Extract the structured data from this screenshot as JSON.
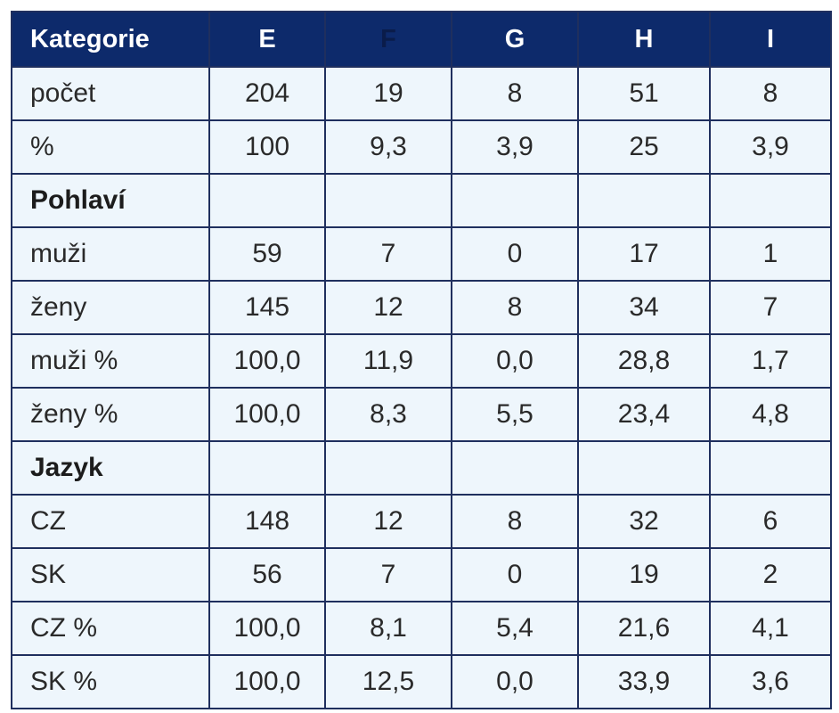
{
  "table": {
    "headers": [
      "Kategorie",
      "E",
      "F",
      "G",
      "H",
      "I"
    ],
    "rows": [
      {
        "label": "počet",
        "values": [
          "204",
          "19",
          "8",
          "51",
          "8"
        ]
      },
      {
        "label": "%",
        "values": [
          "100",
          "9,3",
          "3,9",
          "25",
          "3,9"
        ]
      },
      {
        "label": "Pohlaví",
        "section": true,
        "values": [
          "",
          "",
          "",
          "",
          ""
        ]
      },
      {
        "label": "muži",
        "values": [
          "59",
          "7",
          "0",
          "17",
          "1"
        ]
      },
      {
        "label": "ženy",
        "values": [
          "145",
          "12",
          "8",
          "34",
          "7"
        ]
      },
      {
        "label": "muži %",
        "values": [
          "100,0",
          "11,9",
          "0,0",
          "28,8",
          "1,7"
        ]
      },
      {
        "label": "ženy %",
        "values": [
          "100,0",
          "8,3",
          "5,5",
          "23,4",
          "4,8"
        ]
      },
      {
        "label": "Jazyk",
        "section": true,
        "values": [
          "",
          "",
          "",
          "",
          ""
        ]
      },
      {
        "label": "CZ",
        "values": [
          "148",
          "12",
          "8",
          "32",
          "6"
        ]
      },
      {
        "label": "SK",
        "values": [
          "56",
          "7",
          "0",
          "19",
          "2"
        ]
      },
      {
        "label": "CZ %",
        "values": [
          "100,0",
          "8,1",
          "5,4",
          "21,6",
          "4,1"
        ]
      },
      {
        "label": "SK %",
        "values": [
          "100,0",
          "12,5",
          "0,0",
          "33,9",
          "3,6"
        ]
      }
    ]
  },
  "colors": {
    "header_background": "#0d2a6b",
    "header_text": "#ffffff",
    "cell_background": "#eef6fc",
    "border": "#1f2f5e"
  }
}
